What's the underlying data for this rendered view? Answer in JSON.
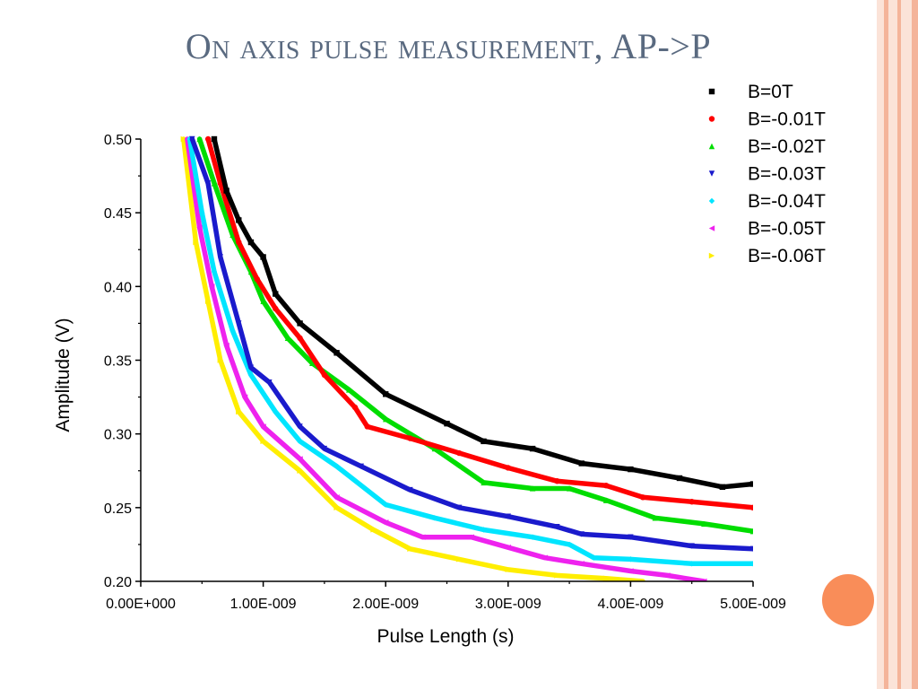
{
  "slide": {
    "title": "On axis pulse measurement, AP->P"
  },
  "colors": {
    "title": "#5a6a80",
    "stripe_light": "#fbe3d8",
    "stripe_mid": "#f4b49a",
    "accent_dot": "#f98d59"
  },
  "chart_data": {
    "type": "line",
    "title": "",
    "xlabel": "Pulse Length (s)",
    "ylabel": "Amplitude (V)",
    "xlim": [
      0,
      5e-09
    ],
    "ylim": [
      0.2,
      0.5
    ],
    "x_ticks": [
      0,
      1e-09,
      2e-09,
      3e-09,
      4e-09,
      5e-09
    ],
    "x_tick_labels": [
      "0.00E+000",
      "1.00E-009",
      "2.00E-009",
      "3.00E-009",
      "4.00E-009",
      "5.00E-009"
    ],
    "y_ticks": [
      0.2,
      0.25,
      0.3,
      0.35,
      0.4,
      0.45,
      0.5
    ],
    "y_tick_labels": [
      "0.20",
      "0.25",
      "0.30",
      "0.35",
      "0.40",
      "0.45",
      "0.50"
    ],
    "grid": false,
    "legend_position": "top-right, outside plot",
    "series": [
      {
        "name": "B=0T",
        "color": "#000000",
        "marker": "square",
        "x": [
          6e-10,
          7e-10,
          8e-10,
          9e-10,
          1e-09,
          1.1e-09,
          1.3e-09,
          1.6e-09,
          2e-09,
          2.5e-09,
          2.8e-09,
          3.2e-09,
          3.6e-09,
          4e-09,
          4.4e-09,
          4.75e-09,
          5e-09
        ],
        "y": [
          0.5,
          0.465,
          0.445,
          0.43,
          0.42,
          0.395,
          0.375,
          0.355,
          0.327,
          0.307,
          0.295,
          0.29,
          0.28,
          0.276,
          0.27,
          0.264,
          0.266
        ]
      },
      {
        "name": "B=-0.01T",
        "color": "#ff0000",
        "marker": "circle",
        "x": [
          5.5e-10,
          6.5e-10,
          8e-10,
          9.5e-10,
          1.1e-09,
          1.3e-09,
          1.5e-09,
          1.75e-09,
          1.85e-09,
          2.2e-09,
          2.6e-09,
          3e-09,
          3.4e-09,
          3.8e-09,
          4.1e-09,
          4.5e-09,
          5e-09
        ],
        "y": [
          0.5,
          0.47,
          0.43,
          0.405,
          0.385,
          0.365,
          0.34,
          0.318,
          0.305,
          0.297,
          0.287,
          0.277,
          0.268,
          0.265,
          0.257,
          0.254,
          0.25
        ]
      },
      {
        "name": "B=-0.02T",
        "color": "#00dd00",
        "marker": "triangle-up",
        "x": [
          4.8e-10,
          6e-10,
          7.5e-10,
          9e-10,
          1e-09,
          1.2e-09,
          1.4e-09,
          1.7e-09,
          2e-09,
          2.4e-09,
          2.8e-09,
          3.2e-09,
          3.5e-09,
          3.8e-09,
          4.2e-09,
          4.6e-09,
          5e-09
        ],
        "y": [
          0.5,
          0.47,
          0.435,
          0.41,
          0.39,
          0.365,
          0.348,
          0.33,
          0.31,
          0.29,
          0.267,
          0.263,
          0.263,
          0.255,
          0.243,
          0.239,
          0.234
        ]
      },
      {
        "name": "B=-0.03T",
        "color": "#1a1acc",
        "marker": "triangle-down",
        "x": [
          4.2e-10,
          5.5e-10,
          6.5e-10,
          8e-10,
          9e-10,
          1.05e-09,
          1.3e-09,
          1.5e-09,
          1.8e-09,
          2.2e-09,
          2.6e-09,
          3e-09,
          3.4e-09,
          3.6e-09,
          4e-09,
          4.5e-09,
          5e-09
        ],
        "y": [
          0.5,
          0.47,
          0.42,
          0.375,
          0.345,
          0.335,
          0.305,
          0.29,
          0.278,
          0.262,
          0.25,
          0.244,
          0.237,
          0.232,
          0.23,
          0.224,
          0.222
        ]
      },
      {
        "name": "B=-0.04T",
        "color": "#00e5ff",
        "marker": "diamond",
        "x": [
          4e-10,
          5e-10,
          6e-10,
          7.5e-10,
          9e-10,
          1.1e-09,
          1.3e-09,
          1.6e-09,
          2e-09,
          2.4e-09,
          2.8e-09,
          3.2e-09,
          3.5e-09,
          3.7e-09,
          4e-09,
          4.5e-09,
          5e-09
        ],
        "y": [
          0.5,
          0.45,
          0.41,
          0.37,
          0.34,
          0.315,
          0.295,
          0.278,
          0.252,
          0.243,
          0.235,
          0.23,
          0.225,
          0.216,
          0.215,
          0.212,
          0.212
        ]
      },
      {
        "name": "B=-0.05T",
        "color": "#ee22ee",
        "marker": "triangle-left",
        "x": [
          3.8e-10,
          4.8e-10,
          5.8e-10,
          7e-10,
          8.5e-10,
          1e-09,
          1.3e-09,
          1.6e-09,
          2e-09,
          2.3e-09,
          2.7e-09,
          3e-09,
          3.3e-09,
          3.6e-09,
          4e-09,
          4.3e-09,
          4.6e-09
        ],
        "y": [
          0.5,
          0.44,
          0.4,
          0.36,
          0.325,
          0.305,
          0.283,
          0.257,
          0.24,
          0.23,
          0.23,
          0.223,
          0.216,
          0.212,
          0.207,
          0.204,
          0.2
        ]
      },
      {
        "name": "B=-0.06T",
        "color": "#ffee00",
        "marker": "triangle-right",
        "x": [
          3.5e-10,
          4.5e-10,
          5.5e-10,
          6.5e-10,
          8e-10,
          1e-09,
          1.3e-09,
          1.6e-09,
          1.9e-09,
          2.2e-09,
          2.6e-09,
          3e-09,
          3.4e-09,
          3.8e-09,
          4.1e-09
        ],
        "y": [
          0.5,
          0.43,
          0.39,
          0.35,
          0.315,
          0.295,
          0.275,
          0.25,
          0.235,
          0.222,
          0.215,
          0.208,
          0.204,
          0.202,
          0.2
        ]
      }
    ]
  }
}
